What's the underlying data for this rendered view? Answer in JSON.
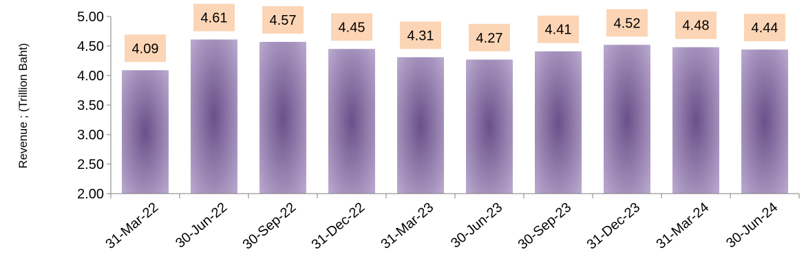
{
  "chart_data": {
    "type": "bar",
    "title": "",
    "xlabel": "",
    "ylabel": "Revenue ;  (Trillion Baht)",
    "ylim": [
      2.0,
      5.0
    ],
    "yticks": [
      "2.00",
      "2.50",
      "3.00",
      "3.50",
      "4.00",
      "4.50",
      "5.00"
    ],
    "categories": [
      "31-Mar-22",
      "30-Jun-22",
      "30-Sep-22",
      "31-Dec-22",
      "31-Mar-23",
      "30-Jun-23",
      "30-Sep-23",
      "31-Dec-23",
      "31-Mar-24",
      "30-Jun-24"
    ],
    "values": [
      4.09,
      4.61,
      4.57,
      4.45,
      4.31,
      4.27,
      4.41,
      4.52,
      4.48,
      4.44
    ],
    "data_labels": [
      "4.09",
      "4.61",
      "4.57",
      "4.45",
      "4.31",
      "4.27",
      "4.41",
      "4.52",
      "4.48",
      "4.44"
    ],
    "grid": false,
    "legend": "none",
    "colors": {
      "bar_center": "#6a5089",
      "bar_edge": "#c0b0d4",
      "label_bg": "#fbd5b5",
      "axis": "#7f7f7f"
    }
  }
}
